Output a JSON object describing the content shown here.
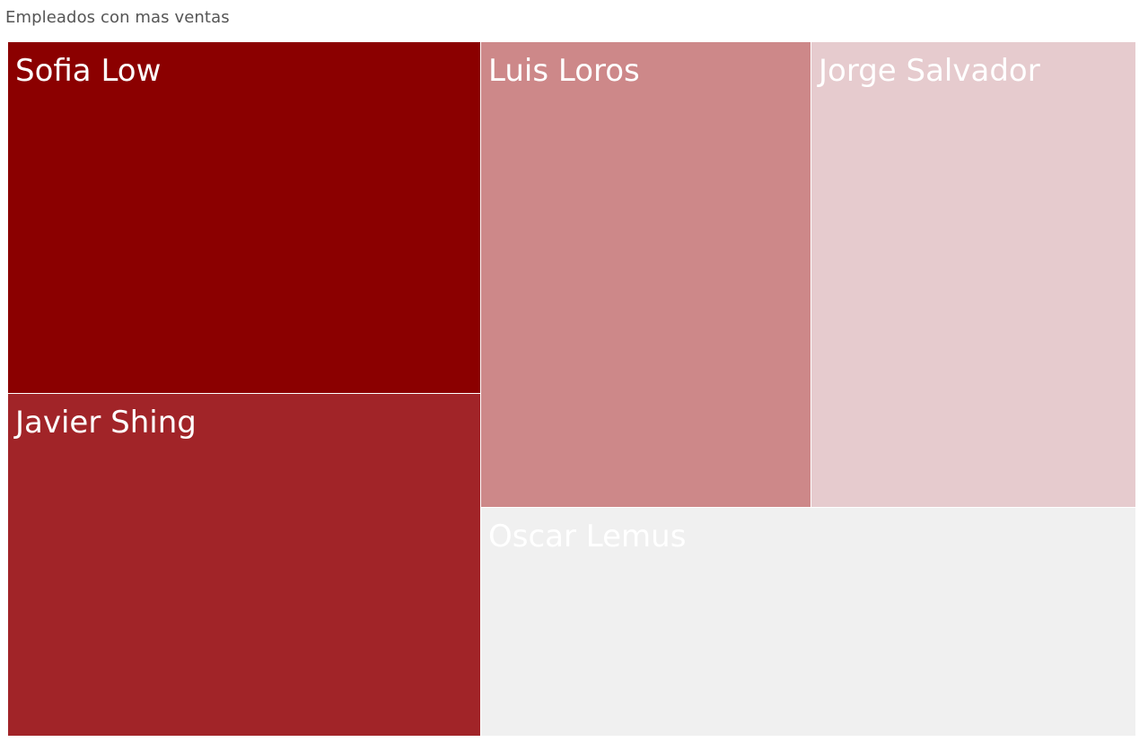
{
  "title": "Empleados con mas ventas",
  "chart_data": {
    "type": "treemap",
    "title": "Empleados con mas ventas",
    "items": [
      {
        "name": "Sofia Low",
        "rank": 1,
        "color": "#8B0000"
      },
      {
        "name": "Javier Shing",
        "rank": 2,
        "color": "#A12428"
      },
      {
        "name": "Luis Loros",
        "rank": 3,
        "color": "#CD8889"
      },
      {
        "name": "Jorge Salvador",
        "rank": 4,
        "color": "#E6CBCE"
      },
      {
        "name": "Oscar Lemus",
        "rank": 5,
        "color": "#F0F0F0"
      }
    ]
  }
}
